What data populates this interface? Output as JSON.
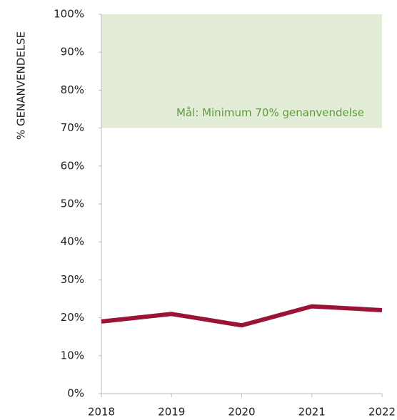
{
  "chart_data": {
    "type": "line",
    "y_label": "% GENANVENDELSE",
    "categories": [
      "2018",
      "2019",
      "2020",
      "2021",
      "2022"
    ],
    "series": [
      {
        "name": null,
        "color": "#9b1437",
        "values": [
          19,
          21,
          18,
          23,
          22
        ]
      }
    ],
    "ylim": [
      0,
      100
    ],
    "yticks": [
      {
        "value": 0,
        "label": "0%"
      },
      {
        "value": 10,
        "label": "10%"
      },
      {
        "value": 20,
        "label": "20%"
      },
      {
        "value": 30,
        "label": "30%"
      },
      {
        "value": 40,
        "label": "40%"
      },
      {
        "value": 50,
        "label": "50%"
      },
      {
        "value": 60,
        "label": "60%"
      },
      {
        "value": 70,
        "label": "70%"
      },
      {
        "value": 80,
        "label": "80%"
      },
      {
        "value": 90,
        "label": "90%"
      },
      {
        "value": 100,
        "label": "100%"
      }
    ],
    "grid": false,
    "target": {
      "range": [
        70,
        100
      ],
      "label": "Mål: Minimum 70% genanvendelse",
      "color": "#e2ecd6",
      "label_color": "#5e9a3f"
    }
  }
}
